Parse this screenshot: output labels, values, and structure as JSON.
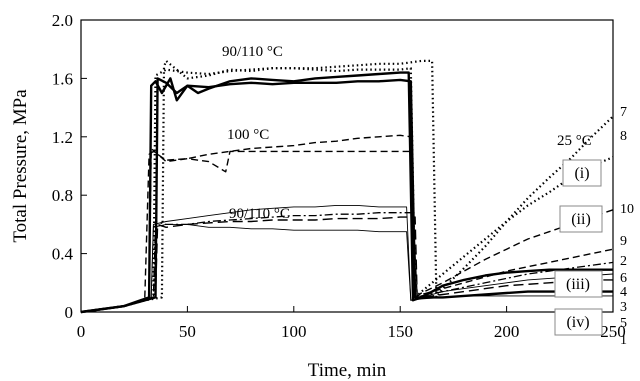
{
  "chart_data": {
    "type": "line",
    "xlabel": "Time, min",
    "ylabel": "Total Pressure, MPa",
    "xlim": [
      0,
      250
    ],
    "ylim": [
      0,
      2.0
    ],
    "x_ticks": [
      "0",
      "50",
      "100",
      "150",
      "200",
      "250"
    ],
    "y_ticks": [
      "0",
      "0.4",
      "0.8",
      "1.2",
      "1.6",
      "2.0"
    ],
    "grid": false,
    "annotations": [
      "90/110 °C",
      "100 °C",
      "90/110 °C",
      "25 °C"
    ],
    "group_labels": [
      "(i)",
      "(ii)",
      "(iii)",
      "(iv)"
    ],
    "curve_numbers": [
      "7",
      "8",
      "10",
      "9",
      "2",
      "6",
      "4",
      "3",
      "5",
      "1"
    ],
    "series": [
      {
        "style": "solid-thick",
        "x": [
          0,
          20,
          28,
          32,
          33,
          35,
          38,
          42,
          45,
          50,
          55,
          60,
          70,
          80,
          90,
          100,
          110,
          120,
          130,
          140,
          150,
          154,
          156,
          160,
          170,
          180,
          190,
          200,
          210,
          220,
          230,
          240,
          250
        ],
        "y": [
          0,
          0.04,
          0.08,
          0.1,
          1.55,
          1.58,
          1.5,
          1.6,
          1.45,
          1.55,
          1.5,
          1.53,
          1.58,
          1.6,
          1.59,
          1.58,
          1.6,
          1.61,
          1.62,
          1.63,
          1.64,
          1.64,
          0.08,
          0.1,
          0.18,
          0.22,
          0.25,
          0.27,
          0.28,
          0.29,
          0.29,
          0.29,
          0.29
        ]
      },
      {
        "style": "solid-thick",
        "x": [
          0,
          20,
          30,
          35,
          36,
          40,
          45,
          50,
          60,
          70,
          80,
          90,
          100,
          110,
          120,
          130,
          140,
          150,
          155,
          157,
          160,
          170,
          180,
          190,
          200,
          210,
          220,
          230,
          240,
          250
        ],
        "y": [
          0,
          0.04,
          0.08,
          0.1,
          1.6,
          1.57,
          1.5,
          1.55,
          1.54,
          1.56,
          1.57,
          1.56,
          1.57,
          1.57,
          1.57,
          1.58,
          1.58,
          1.59,
          1.58,
          0.1,
          0.1,
          0.1,
          0.11,
          0.12,
          0.13,
          0.14,
          0.14,
          0.14,
          0.14,
          0.14
        ]
      },
      {
        "style": "dotted-thick",
        "x": [
          0,
          20,
          30,
          38,
          39,
          40,
          50,
          60,
          70,
          80,
          90,
          100,
          110,
          120,
          130,
          140,
          150,
          160,
          165,
          167,
          170,
          180,
          190,
          200,
          210,
          220,
          230,
          240,
          250
        ],
        "y": [
          0,
          0.04,
          0.08,
          0.1,
          1.68,
          1.72,
          1.6,
          1.62,
          1.66,
          1.65,
          1.67,
          1.67,
          1.67,
          1.68,
          1.69,
          1.7,
          1.7,
          1.72,
          1.72,
          0.1,
          0.16,
          0.3,
          0.45,
          0.62,
          0.78,
          0.92,
          1.05,
          1.2,
          1.34
        ]
      },
      {
        "style": "dotted-thick",
        "x": [
          0,
          20,
          30,
          34,
          35,
          40,
          50,
          60,
          70,
          80,
          90,
          100,
          110,
          120,
          130,
          140,
          150,
          155,
          157,
          160,
          170,
          180,
          190,
          200,
          210,
          220,
          230,
          240,
          250
        ],
        "y": [
          0,
          0.04,
          0.08,
          0.1,
          1.62,
          1.66,
          1.64,
          1.63,
          1.65,
          1.66,
          1.67,
          1.67,
          1.66,
          1.65,
          1.66,
          1.66,
          1.66,
          1.67,
          0.1,
          0.14,
          0.26,
          0.38,
          0.5,
          0.62,
          0.73,
          0.82,
          0.92,
          1.0,
          1.06
        ]
      },
      {
        "style": "dashed",
        "x": [
          0,
          20,
          28,
          30,
          32,
          34,
          40,
          50,
          60,
          70,
          80,
          90,
          100,
          110,
          120,
          130,
          140,
          150,
          155,
          157,
          160,
          170,
          180,
          190,
          200,
          210,
          220,
          230,
          240,
          250
        ],
        "y": [
          0,
          0.04,
          0.08,
          0.1,
          1.08,
          1.1,
          1.04,
          1.05,
          1.08,
          1.1,
          1.12,
          1.13,
          1.14,
          1.16,
          1.17,
          1.19,
          1.2,
          1.21,
          1.2,
          0.1,
          0.13,
          0.2,
          0.28,
          0.36,
          0.43,
          0.5,
          0.55,
          0.6,
          0.65,
          0.7
        ]
      },
      {
        "style": "dashed",
        "x": [
          0,
          20,
          28,
          32,
          33,
          40,
          50,
          60,
          68,
          70,
          80,
          90,
          100,
          110,
          120,
          130,
          140,
          150,
          155,
          156,
          160,
          170,
          180,
          190,
          200,
          210,
          220,
          230,
          240,
          250
        ],
        "y": [
          0,
          0.04,
          0.08,
          0.1,
          1.12,
          1.03,
          1.05,
          1.03,
          0.96,
          1.1,
          1.1,
          1.1,
          1.1,
          1.1,
          1.1,
          1.1,
          1.1,
          1.1,
          1.1,
          0.1,
          0.12,
          0.16,
          0.2,
          0.24,
          0.28,
          0.31,
          0.34,
          0.37,
          0.4,
          0.43
        ]
      },
      {
        "style": "thin",
        "x": [
          0,
          20,
          30,
          33,
          34,
          40,
          50,
          60,
          70,
          80,
          90,
          100,
          110,
          120,
          130,
          140,
          150,
          153,
          155,
          160,
          170,
          180,
          190,
          200,
          210,
          220,
          230,
          240,
          250
        ],
        "y": [
          0,
          0.04,
          0.08,
          0.1,
          0.6,
          0.62,
          0.64,
          0.66,
          0.68,
          0.7,
          0.71,
          0.72,
          0.72,
          0.73,
          0.73,
          0.72,
          0.72,
          0.72,
          0.08,
          0.1,
          0.14,
          0.16,
          0.18,
          0.2,
          0.22,
          0.23,
          0.24,
          0.25,
          0.26
        ]
      },
      {
        "style": "thin",
        "x": [
          0,
          20,
          30,
          33,
          34,
          40,
          50,
          60,
          70,
          80,
          90,
          100,
          110,
          120,
          130,
          140,
          150,
          153,
          155,
          160,
          170,
          180,
          190,
          200,
          210,
          220,
          230,
          240,
          250
        ],
        "y": [
          0,
          0.04,
          0.08,
          0.1,
          0.58,
          0.6,
          0.6,
          0.58,
          0.58,
          0.57,
          0.57,
          0.56,
          0.56,
          0.56,
          0.56,
          0.55,
          0.55,
          0.55,
          0.08,
          0.09,
          0.1,
          0.11,
          0.11,
          0.11,
          0.11,
          0.11,
          0.11,
          0.11,
          0.11
        ]
      },
      {
        "style": "dashdot",
        "x": [
          0,
          20,
          30,
          34,
          35,
          40,
          50,
          60,
          70,
          80,
          90,
          100,
          110,
          120,
          130,
          140,
          150,
          156,
          158,
          160,
          170,
          180,
          190,
          200,
          210,
          220,
          230,
          240,
          250
        ],
        "y": [
          0,
          0.04,
          0.08,
          0.1,
          0.62,
          0.6,
          0.6,
          0.62,
          0.63,
          0.64,
          0.65,
          0.66,
          0.66,
          0.67,
          0.67,
          0.68,
          0.68,
          0.68,
          0.1,
          0.11,
          0.14,
          0.17,
          0.2,
          0.23,
          0.26,
          0.28,
          0.3,
          0.32,
          0.34
        ]
      },
      {
        "style": "dashed-long",
        "x": [
          0,
          20,
          30,
          35,
          36,
          40,
          50,
          60,
          70,
          80,
          90,
          100,
          110,
          120,
          130,
          140,
          150,
          157,
          158,
          160,
          170,
          180,
          190,
          200,
          210,
          220,
          230,
          240,
          250
        ],
        "y": [
          0,
          0.04,
          0.08,
          0.1,
          0.6,
          0.58,
          0.6,
          0.61,
          0.62,
          0.62,
          0.63,
          0.63,
          0.63,
          0.64,
          0.64,
          0.64,
          0.65,
          0.65,
          0.1,
          0.1,
          0.12,
          0.14,
          0.16,
          0.18,
          0.19,
          0.2,
          0.21,
          0.22,
          0.22
        ]
      }
    ]
  }
}
